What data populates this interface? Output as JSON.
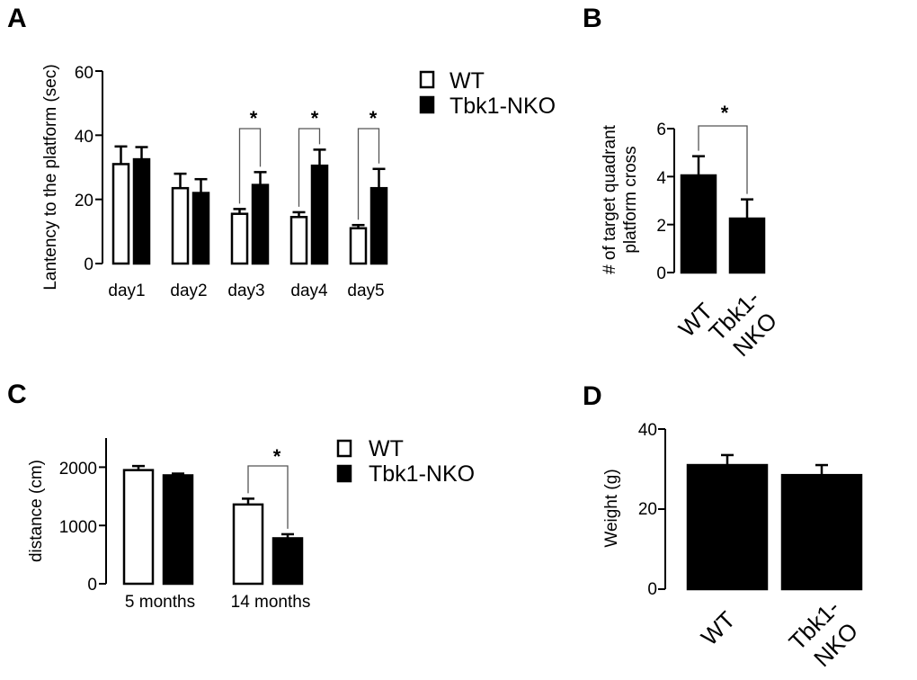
{
  "colors": {
    "wt": "#ffffff",
    "ko": "#000000",
    "stroke": "#000000"
  },
  "chart_data": [
    {
      "id": "A",
      "type": "bar",
      "panel_label": "A",
      "title": "",
      "xlabel": "",
      "ylabel": "Lantency to the platform (sec)",
      "ylim": [
        0,
        60
      ],
      "yticks": [
        "0",
        "20",
        "40",
        "60"
      ],
      "categories": [
        "day1",
        "day2",
        "day3",
        "day4",
        "day5"
      ],
      "series": [
        {
          "name": "WT",
          "values": [
            31,
            23.5,
            15.5,
            14.5,
            11
          ],
          "errors": [
            5.5,
            4.5,
            1.5,
            1.5,
            1
          ]
        },
        {
          "name": "Tbk1-NKO",
          "values": [
            32.5,
            22,
            24.5,
            30.5,
            23.5
          ],
          "errors": [
            3.8,
            4.3,
            4,
            5,
            6
          ]
        }
      ],
      "significance": [
        "",
        "",
        "*",
        "*",
        "*"
      ],
      "legend": [
        "WT",
        "Tbk1-NKO"
      ]
    },
    {
      "id": "B",
      "type": "bar",
      "panel_label": "B",
      "title": "",
      "xlabel": "",
      "ylabel_lines": [
        "# of target quadrant",
        "platform cross"
      ],
      "ylim": [
        0,
        6
      ],
      "yticks": [
        "0",
        "2",
        "4",
        "6"
      ],
      "categories": [
        "WT",
        "Tbk1-NKO"
      ],
      "category_lines": [
        [
          "WT"
        ],
        [
          "Tbk1-",
          "NKO"
        ]
      ],
      "values": [
        4.05,
        2.25
      ],
      "errors": [
        0.8,
        0.8
      ],
      "significance": "*"
    },
    {
      "id": "C",
      "type": "bar",
      "panel_label": "C",
      "title": "",
      "xlabel": "",
      "ylabel": "distance (cm)",
      "ylim": [
        0,
        2500
      ],
      "yticks": [
        "0",
        "1000",
        "2000"
      ],
      "categories": [
        "5 months",
        "14 months"
      ],
      "series": [
        {
          "name": "WT",
          "values": [
            1950,
            1360
          ],
          "errors": [
            70,
            100
          ]
        },
        {
          "name": "Tbk1-NKO",
          "values": [
            1860,
            780
          ],
          "errors": [
            30,
            70
          ]
        }
      ],
      "significance": [
        "",
        "*"
      ],
      "legend": [
        "WT",
        "Tbk1-NKO"
      ]
    },
    {
      "id": "D",
      "type": "bar",
      "panel_label": "D",
      "title": "",
      "xlabel": "",
      "ylabel": "Weight (g)",
      "ylim": [
        0,
        40
      ],
      "yticks": [
        "0",
        "20",
        "40"
      ],
      "categories": [
        "WT",
        "Tbk1-NKO"
      ],
      "category_lines": [
        [
          "WT"
        ],
        [
          "Tbk1-",
          "NKO"
        ]
      ],
      "values": [
        31,
        28.5
      ],
      "errors": [
        2.5,
        2.5
      ]
    }
  ]
}
